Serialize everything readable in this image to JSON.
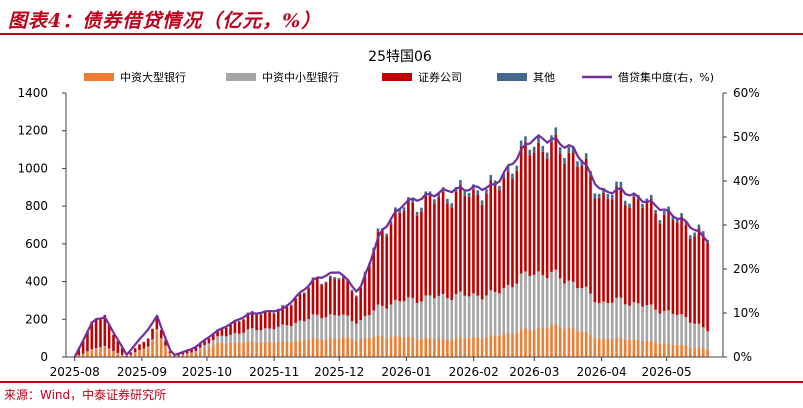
{
  "header": {
    "title": "图表4：债券借贷情况（亿元，%）"
  },
  "footer": {
    "source": "来源：Wind，中泰证券研究所"
  },
  "colors": {
    "major_banks": "#ed7d31",
    "smb_banks": "#a5a5a5",
    "securities": "#c00000",
    "others": "#44698f",
    "concentration": "#7030a0",
    "title_red": "#c0001a",
    "axis": "#404040"
  },
  "chart_data": {
    "type": "bar",
    "stacked": true,
    "title": "25特国06",
    "y_left": {
      "min": 0,
      "max": 1400,
      "ticks": [
        "0",
        "200",
        "400",
        "600",
        "800",
        "1000",
        "1200",
        "1400"
      ]
    },
    "y_right": {
      "min": 0,
      "max": 60,
      "ticks": [
        "0%",
        "10%",
        "20%",
        "30%",
        "40%",
        "50%",
        "60%"
      ]
    },
    "x_ticks": [
      "2025-08",
      "2025-09",
      "2025-10",
      "2025-11",
      "2025-12",
      "2026-01",
      "2026-02",
      "2026-03",
      "2026-04",
      "2026-05"
    ],
    "legend_placement": "top",
    "grid": false,
    "series": [
      {
        "name": "中资大型银行",
        "type": "bar",
        "axis": "left",
        "points": [
          [
            "2025-08-01",
            0
          ],
          [
            "2025-08-10",
            40
          ],
          [
            "2025-08-15",
            50
          ],
          [
            "2025-08-25",
            0
          ],
          [
            "2025-09-05",
            60
          ],
          [
            "2025-09-08",
            130
          ],
          [
            "2025-09-15",
            0
          ],
          [
            "2025-09-25",
            20
          ],
          [
            "2025-10-05",
            70
          ],
          [
            "2025-10-20",
            80
          ],
          [
            "2025-11-05",
            80
          ],
          [
            "2025-11-20",
            95
          ],
          [
            "2025-12-01",
            100
          ],
          [
            "2025-12-10",
            95
          ],
          [
            "2025-12-20",
            110
          ],
          [
            "2025-12-31",
            105
          ],
          [
            "2026-01-20",
            95
          ],
          [
            "2026-02-10",
            110
          ],
          [
            "2026-02-28",
            150
          ],
          [
            "2026-03-10",
            165
          ],
          [
            "2026-03-20",
            150
          ],
          [
            "2026-04-01",
            95
          ],
          [
            "2026-04-10",
            100
          ],
          [
            "2026-04-25",
            80
          ],
          [
            "2026-05-10",
            60
          ],
          [
            "2026-05-20",
            40
          ]
        ]
      },
      {
        "name": "中资中小型银行",
        "type": "bar",
        "axis": "left",
        "points": [
          [
            "2025-08-01",
            0
          ],
          [
            "2025-08-10",
            5
          ],
          [
            "2025-08-15",
            5
          ],
          [
            "2025-08-25",
            0
          ],
          [
            "2025-09-05",
            5
          ],
          [
            "2025-09-08",
            10
          ],
          [
            "2025-09-15",
            0
          ],
          [
            "2025-09-25",
            5
          ],
          [
            "2025-10-05",
            30
          ],
          [
            "2025-10-20",
            60
          ],
          [
            "2025-11-05",
            80
          ],
          [
            "2025-11-20",
            120
          ],
          [
            "2025-12-01",
            125
          ],
          [
            "2025-12-10",
            90
          ],
          [
            "2025-12-20",
            160
          ],
          [
            "2025-12-31",
            195
          ],
          [
            "2026-01-20",
            230
          ],
          [
            "2026-02-10",
            220
          ],
          [
            "2026-02-28",
            300
          ],
          [
            "2026-03-10",
            270
          ],
          [
            "2026-03-20",
            240
          ],
          [
            "2026-04-01",
            190
          ],
          [
            "2026-04-10",
            200
          ],
          [
            "2026-04-25",
            180
          ],
          [
            "2026-05-10",
            150
          ],
          [
            "2026-05-20",
            100
          ]
        ]
      },
      {
        "name": "证券公司",
        "type": "bar",
        "axis": "left",
        "points": [
          [
            "2025-08-01",
            0
          ],
          [
            "2025-08-10",
            160
          ],
          [
            "2025-08-15",
            155
          ],
          [
            "2025-08-25",
            5
          ],
          [
            "2025-09-05",
            50
          ],
          [
            "2025-09-08",
            65
          ],
          [
            "2025-09-15",
            0
          ],
          [
            "2025-09-25",
            25
          ],
          [
            "2025-10-05",
            30
          ],
          [
            "2025-10-20",
            80
          ],
          [
            "2025-11-05",
            90
          ],
          [
            "2025-11-20",
            185
          ],
          [
            "2025-12-01",
            195
          ],
          [
            "2025-12-10",
            145
          ],
          [
            "2025-12-20",
            390
          ],
          [
            "2025-12-31",
            485
          ],
          [
            "2026-01-20",
            525
          ],
          [
            "2026-02-10",
            545
          ],
          [
            "2026-02-28",
            670
          ],
          [
            "2026-03-10",
            665
          ],
          [
            "2026-03-20",
            680
          ],
          [
            "2026-04-01",
            560
          ],
          [
            "2026-04-10",
            560
          ],
          [
            "2026-04-25",
            525
          ],
          [
            "2026-05-10",
            485
          ],
          [
            "2026-05-20",
            475
          ]
        ]
      },
      {
        "name": "其他",
        "type": "bar",
        "axis": "left",
        "points": [
          [
            "2025-08-01",
            0
          ],
          [
            "2025-08-10",
            0
          ],
          [
            "2025-08-15",
            0
          ],
          [
            "2025-08-25",
            0
          ],
          [
            "2025-09-05",
            0
          ],
          [
            "2025-09-08",
            0
          ],
          [
            "2025-09-15",
            0
          ],
          [
            "2025-09-25",
            0
          ],
          [
            "2025-10-05",
            0
          ],
          [
            "2025-10-20",
            5
          ],
          [
            "2025-11-05",
            5
          ],
          [
            "2025-11-20",
            5
          ],
          [
            "2025-12-01",
            10
          ],
          [
            "2025-12-10",
            10
          ],
          [
            "2025-12-20",
            15
          ],
          [
            "2025-12-31",
            20
          ],
          [
            "2026-01-20",
            25
          ],
          [
            "2026-02-10",
            25
          ],
          [
            "2026-02-28",
            30
          ],
          [
            "2026-03-10",
            35
          ],
          [
            "2026-03-20",
            30
          ],
          [
            "2026-04-01",
            25
          ],
          [
            "2026-04-10",
            25
          ],
          [
            "2026-04-25",
            20
          ],
          [
            "2026-05-10",
            20
          ],
          [
            "2026-05-20",
            20
          ]
        ]
      },
      {
        "name": "借贷集中度(右，%)",
        "type": "line",
        "axis": "right",
        "points": [
          [
            "2025-08-01",
            0
          ],
          [
            "2025-08-10",
            8.7
          ],
          [
            "2025-08-15",
            8.9
          ],
          [
            "2025-08-25",
            0.5
          ],
          [
            "2025-09-05",
            7
          ],
          [
            "2025-09-08",
            9.3
          ],
          [
            "2025-09-15",
            0.3
          ],
          [
            "2025-09-25",
            2
          ],
          [
            "2025-10-05",
            5.7
          ],
          [
            "2025-10-20",
            9.7
          ],
          [
            "2025-11-05",
            10.8
          ],
          [
            "2025-11-20",
            17.8
          ],
          [
            "2025-12-01",
            19.5
          ],
          [
            "2025-12-10",
            14.5
          ],
          [
            "2025-12-20",
            28.3
          ],
          [
            "2025-12-31",
            35.1
          ],
          [
            "2026-01-20",
            37.9
          ],
          [
            "2026-02-10",
            38.7
          ],
          [
            "2026-02-28",
            49.8
          ],
          [
            "2026-03-10",
            49.3
          ],
          [
            "2026-03-20",
            47
          ],
          [
            "2026-04-01",
            37.5
          ],
          [
            "2026-04-10",
            37.9
          ],
          [
            "2026-04-25",
            34.7
          ],
          [
            "2026-05-10",
            30.6
          ],
          [
            "2026-05-20",
            26.5
          ]
        ]
      }
    ]
  }
}
